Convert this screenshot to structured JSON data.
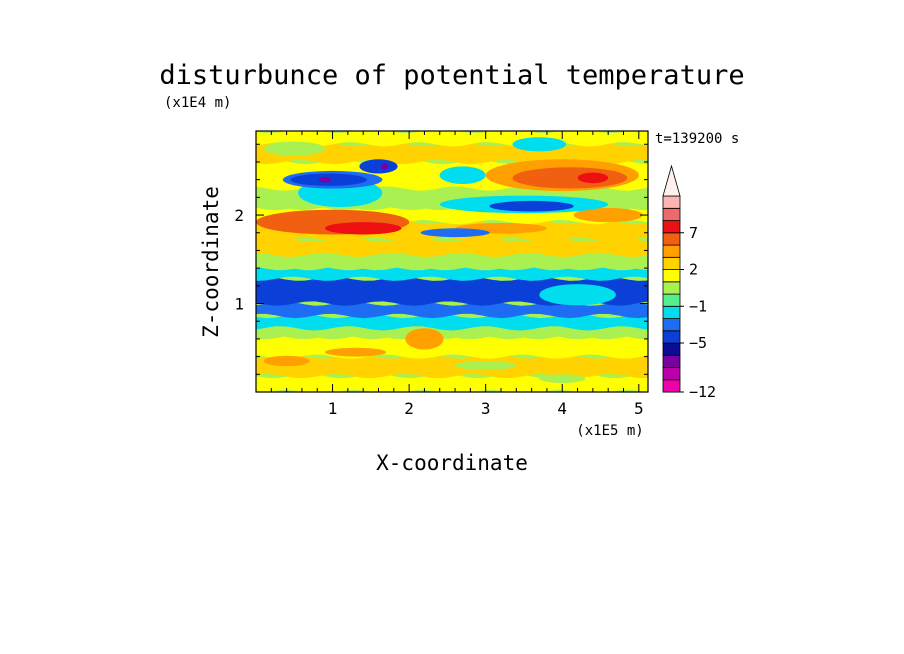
{
  "chart_data": {
    "type": "heatmap",
    "title": "disturbunce of potential temperature",
    "ylabel": "Z-coordinate",
    "xlabel": "X-coordinate",
    "y_unit": "(x1E4 m)",
    "x_unit": "(x1E5 m)",
    "time_label": "t=139200 s",
    "xlim": [
      0,
      5.12
    ],
    "ylim": [
      0,
      2.95
    ],
    "x_ticks": [
      "1",
      "2",
      "3",
      "4",
      "5"
    ],
    "x_tick_values": [
      1,
      2,
      3,
      4,
      5
    ],
    "y_ticks": [
      "1",
      "2"
    ],
    "y_tick_values": [
      1,
      2
    ],
    "colorbar": {
      "levels": [
        -12,
        -11,
        -9,
        -7,
        -5,
        -4,
        -2,
        -1,
        0,
        1,
        2,
        3,
        5,
        7,
        9,
        10,
        12
      ],
      "tick_labels": [
        "-12",
        "-5",
        "-1",
        "2",
        "7"
      ],
      "tick_values": [
        -12,
        -5,
        -1,
        2,
        7
      ],
      "extend": "max",
      "colors": [
        "#ee00aa",
        "#bb00aa",
        "#7a00a0",
        "#0d0a96",
        "#0a40d8",
        "#1e6cf2",
        "#00ddee",
        "#55ee88",
        "#aaf050",
        "#ffff00",
        "#ffd200",
        "#ffa000",
        "#f06010",
        "#ee1010",
        "#ee6a6a",
        "#ffb4b4",
        "#fff0f0"
      ]
    },
    "bands": [
      {
        "y_from": 0.0,
        "y_to": 0.18,
        "value": 1.5
      },
      {
        "y_from": 0.18,
        "y_to": 0.4,
        "value": 2.5
      },
      {
        "y_from": 0.4,
        "y_to": 0.62,
        "value": 1.5
      },
      {
        "y_from": 0.62,
        "y_to": 0.72,
        "value": 0.5
      },
      {
        "y_from": 0.72,
        "y_to": 0.86,
        "value": -1.5
      },
      {
        "y_from": 0.86,
        "y_to": 1.0,
        "value": -3
      },
      {
        "y_from": 1.0,
        "y_to": 1.28,
        "value": -4.5
      },
      {
        "y_from": 1.28,
        "y_to": 1.4,
        "value": -1.5
      },
      {
        "y_from": 1.4,
        "y_to": 1.55,
        "value": 0.5
      },
      {
        "y_from": 1.55,
        "y_to": 1.72,
        "value": 2.5
      },
      {
        "y_from": 1.72,
        "y_to": 1.92,
        "value": 2.5
      },
      {
        "y_from": 1.92,
        "y_to": 2.08,
        "value": 1.5
      },
      {
        "y_from": 2.08,
        "y_to": 2.3,
        "value": 0.5
      },
      {
        "y_from": 2.3,
        "y_to": 2.6,
        "value": 1.5
      },
      {
        "y_from": 2.6,
        "y_to": 2.8,
        "value": 2.5
      },
      {
        "y_from": 2.8,
        "y_to": 2.95,
        "value": 1.5
      }
    ],
    "features": [
      {
        "x": 1.0,
        "y": 1.92,
        "rx": 1.0,
        "ry": 0.14,
        "value": 5.5
      },
      {
        "x": 1.4,
        "y": 1.85,
        "rx": 0.5,
        "ry": 0.07,
        "value": 8
      },
      {
        "x": 3.2,
        "y": 1.85,
        "rx": 0.6,
        "ry": 0.06,
        "value": 3.5
      },
      {
        "x": 4.6,
        "y": 2.0,
        "rx": 0.45,
        "ry": 0.08,
        "value": 3.5
      },
      {
        "x": 1.1,
        "y": 2.25,
        "rx": 0.55,
        "ry": 0.16,
        "value": -1.5
      },
      {
        "x": 1.0,
        "y": 2.4,
        "rx": 0.65,
        "ry": 0.1,
        "value": -3
      },
      {
        "x": 0.95,
        "y": 2.4,
        "rx": 0.5,
        "ry": 0.07,
        "value": -4.5
      },
      {
        "x": 1.6,
        "y": 2.55,
        "rx": 0.25,
        "ry": 0.08,
        "value": -4.5
      },
      {
        "x": 0.9,
        "y": 2.4,
        "rx": 0.08,
        "ry": 0.03,
        "value": -8
      },
      {
        "x": 1.68,
        "y": 2.55,
        "rx": 0.04,
        "ry": 0.04,
        "value": -8
      },
      {
        "x": 3.5,
        "y": 2.12,
        "rx": 1.1,
        "ry": 0.1,
        "value": -1.5
      },
      {
        "x": 3.6,
        "y": 2.1,
        "rx": 0.55,
        "ry": 0.06,
        "value": -4.5
      },
      {
        "x": 2.6,
        "y": 1.8,
        "rx": 0.45,
        "ry": 0.05,
        "value": -3
      },
      {
        "x": 4.0,
        "y": 2.45,
        "rx": 1.0,
        "ry": 0.18,
        "value": 3.5
      },
      {
        "x": 4.1,
        "y": 2.42,
        "rx": 0.75,
        "ry": 0.12,
        "value": 5.5
      },
      {
        "x": 4.4,
        "y": 2.42,
        "rx": 0.2,
        "ry": 0.06,
        "value": 8
      },
      {
        "x": 3.7,
        "y": 2.8,
        "rx": 0.35,
        "ry": 0.08,
        "value": -1.5
      },
      {
        "x": 2.7,
        "y": 2.45,
        "rx": 0.3,
        "ry": 0.1,
        "value": -1.5
      },
      {
        "x": 0.5,
        "y": 2.75,
        "rx": 0.4,
        "ry": 0.08,
        "value": 0.5
      },
      {
        "x": 2.2,
        "y": 0.6,
        "rx": 0.25,
        "ry": 0.12,
        "value": 3.5
      },
      {
        "x": 4.2,
        "y": 1.1,
        "rx": 0.5,
        "ry": 0.12,
        "value": -1.5
      },
      {
        "x": 0.4,
        "y": 0.35,
        "rx": 0.3,
        "ry": 0.06,
        "value": 3.5
      },
      {
        "x": 1.3,
        "y": 0.45,
        "rx": 0.4,
        "ry": 0.05,
        "value": 3.5
      },
      {
        "x": 3.0,
        "y": 0.3,
        "rx": 0.4,
        "ry": 0.05,
        "value": 0.5
      },
      {
        "x": 4.0,
        "y": 0.15,
        "rx": 0.3,
        "ry": 0.05,
        "value": 0.5
      }
    ]
  }
}
